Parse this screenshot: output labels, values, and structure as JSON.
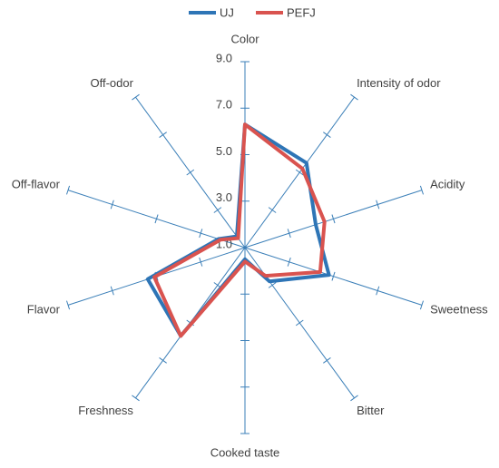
{
  "chart_data": {
    "type": "radar",
    "categories": [
      "Color",
      "Intensity of odor",
      "Acidity",
      "Sweetness",
      "Bitter",
      "Cooked taste",
      "Freshness",
      "Flavor",
      "Off-flavor",
      "Off-odor"
    ],
    "rlim": [
      1,
      9
    ],
    "rticks": [
      {
        "value": 1,
        "label": "1.0"
      },
      {
        "value": 3,
        "label": "3.0"
      },
      {
        "value": 5,
        "label": "5.0"
      },
      {
        "value": 7,
        "label": "7.0"
      },
      {
        "value": 9,
        "label": "9.0"
      }
    ],
    "legend": "top",
    "series": [
      {
        "name": "UJ",
        "color": "#2e75b6",
        "values": [
          6.3,
          5.5,
          4.2,
          4.8,
          2.8,
          1.5,
          5.7,
          5.4,
          2.2,
          1.6
        ]
      },
      {
        "name": "PEFJ",
        "color": "#d9534f",
        "values": [
          6.3,
          5.2,
          4.6,
          4.4,
          2.5,
          1.6,
          5.7,
          5.1,
          2.1,
          1.5
        ]
      }
    ]
  }
}
